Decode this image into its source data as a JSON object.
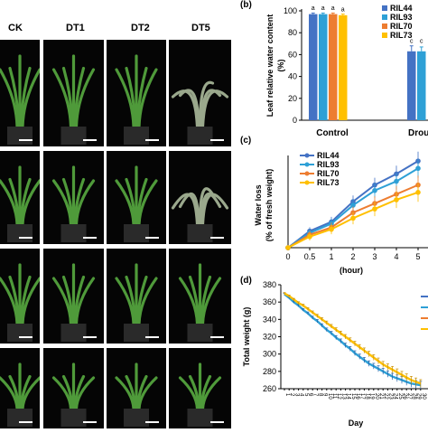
{
  "column_labels": [
    "CK",
    "DT1",
    "DT2",
    "DT5"
  ],
  "photo_rows": 4,
  "panel_b": {
    "letter": "(b)",
    "ylabel_lines": [
      "Leaf relative water content",
      "(%)"
    ],
    "yticks": [
      "0",
      "20",
      "40",
      "60",
      "80",
      "100"
    ],
    "groups": [
      "Control",
      "Drou"
    ],
    "legend": [
      "RIL44",
      "RIL93",
      "RIL70",
      "RIL73"
    ],
    "colors": [
      "#4472C4",
      "#2EA0D6",
      "#ED7D31",
      "#FFC000"
    ],
    "sig_control": [
      "a",
      "a",
      "a",
      "a"
    ],
    "sig_drought": [
      "c",
      "c"
    ]
  },
  "panel_c": {
    "letter": "(c)",
    "ylabel_lines": [
      "Water loss",
      "(% of fresh weight)"
    ],
    "xlabel": "(hour)",
    "xticks": [
      "0",
      "0.5",
      "1",
      "2",
      "3",
      "4",
      "5"
    ],
    "legend": [
      "RIL44",
      "RIL93",
      "RIL70",
      "RIL73"
    ]
  },
  "panel_d": {
    "letter": "(d)",
    "ylabel": "Total weight (g)",
    "xlabel": "Day",
    "yticks": [
      "260",
      "280",
      "300",
      "320",
      "340",
      "360",
      "380"
    ],
    "xticks": [
      "1",
      "2",
      "3",
      "4",
      "5",
      "6",
      "7",
      "8",
      "9",
      "10",
      "11",
      "12",
      "13",
      "14",
      "15",
      "16",
      "17",
      "18",
      "19",
      "20",
      "21",
      "22",
      "23",
      "24",
      "25",
      "26",
      "27",
      "28",
      "29",
      "30"
    ]
  },
  "chart_data": [
    {
      "type": "bar",
      "title": "",
      "ylabel": "Leaf relative water content (%)",
      "ylim": [
        0,
        100
      ],
      "categories": [
        "Control",
        "Drou"
      ],
      "series": [
        {
          "name": "RIL44",
          "values": [
            97,
            63
          ],
          "errors": [
            1,
            5
          ]
        },
        {
          "name": "RIL93",
          "values": [
            97,
            63
          ],
          "errors": [
            1,
            4
          ]
        },
        {
          "name": "RIL70",
          "values": [
            97,
            null
          ],
          "errors": [
            1,
            null
          ]
        },
        {
          "name": "RIL73",
          "values": [
            96,
            null
          ],
          "errors": [
            1,
            null
          ]
        }
      ],
      "legend_position": "top-right"
    },
    {
      "type": "line",
      "ylabel": "Water loss (% of fresh weight)",
      "xlabel": "(hour)",
      "x": [
        0,
        0.5,
        1,
        2,
        3,
        4,
        5
      ],
      "series": [
        {
          "name": "RIL44",
          "values": [
            0,
            9,
            14,
            25,
            34,
            40,
            47
          ]
        },
        {
          "name": "RIL93",
          "values": [
            0,
            8,
            13,
            23,
            31,
            36,
            43
          ]
        },
        {
          "name": "RIL70",
          "values": [
            0,
            7,
            11,
            19,
            24,
            29,
            34
          ]
        },
        {
          "name": "RIL73",
          "values": [
            0,
            6,
            10,
            16,
            21,
            26,
            30
          ]
        }
      ],
      "legend_position": "top-left"
    },
    {
      "type": "line",
      "ylabel": "Total weight (g)",
      "xlabel": "Day",
      "ylim": [
        260,
        380
      ],
      "x": [
        1,
        2,
        3,
        4,
        5,
        6,
        7,
        8,
        9,
        10,
        11,
        12,
        13,
        14,
        15,
        16,
        17,
        18,
        19,
        20,
        21,
        22,
        23,
        24,
        25,
        26,
        27,
        28,
        29,
        30
      ],
      "series": [
        {
          "values": [
            369,
            365,
            360,
            356,
            351,
            347,
            342,
            338,
            333,
            328,
            324,
            319,
            315,
            310,
            306,
            301,
            297,
            293,
            289,
            286,
            283,
            280,
            277,
            274,
            272,
            270,
            268,
            266,
            265,
            264
          ]
        },
        {
          "values": [
            370,
            367,
            363,
            359,
            356,
            352,
            348,
            344,
            340,
            336,
            332,
            328,
            324,
            320,
            316,
            312,
            308,
            304,
            300,
            296,
            292,
            288,
            285,
            282,
            279,
            276,
            273,
            270,
            268,
            266
          ]
        }
      ]
    }
  ]
}
